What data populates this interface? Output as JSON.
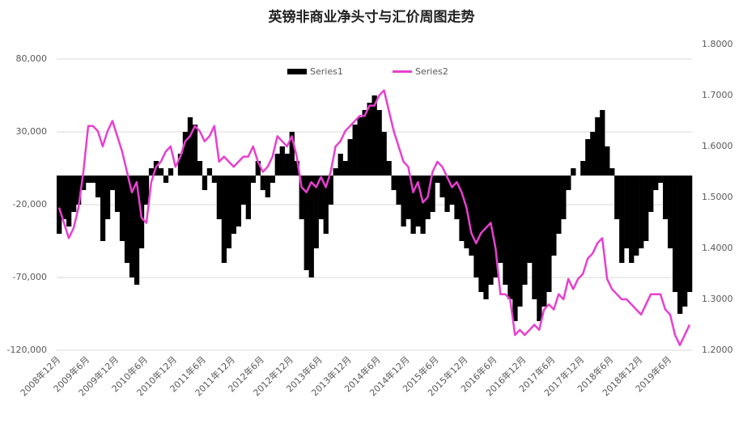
{
  "chart_data": {
    "type": "bar_line",
    "title": "英镑非商业净头寸与汇价周图走势",
    "categories": [
      "2008年12月",
      null,
      null,
      null,
      null,
      null,
      "2009年6月",
      null,
      null,
      null,
      null,
      null,
      "2009年12月",
      null,
      null,
      null,
      null,
      null,
      "2010年6月",
      null,
      null,
      null,
      null,
      null,
      "2010年12月",
      null,
      null,
      null,
      null,
      null,
      "2011年6月",
      null,
      null,
      null,
      null,
      null,
      "2011年12月",
      null,
      null,
      null,
      null,
      null,
      "2012年6月",
      null,
      null,
      null,
      null,
      null,
      "2012年12月",
      null,
      null,
      null,
      null,
      null,
      "2013年6月",
      null,
      null,
      null,
      null,
      null,
      "2013年12月",
      null,
      null,
      null,
      null,
      null,
      "2014年6月",
      null,
      null,
      null,
      null,
      null,
      "2014年12月",
      null,
      null,
      null,
      null,
      null,
      "2015年6月",
      null,
      null,
      null,
      null,
      null,
      "2015年12月",
      null,
      null,
      null,
      null,
      null,
      "2016年6月",
      null,
      null,
      null,
      null,
      null,
      "2016年12月",
      null,
      null,
      null,
      null,
      null,
      "2017年6月",
      null,
      null,
      null,
      null,
      null,
      "2017年12月",
      null,
      null,
      null,
      null,
      null,
      "2018年6月",
      null,
      null,
      null,
      null,
      null,
      "2018年12月",
      null,
      null,
      null,
      null,
      null,
      "2019年6月",
      null,
      null,
      null,
      null
    ],
    "series": [
      {
        "name": "Series1",
        "color": "#000000",
        "kind": "bar",
        "values": [
          -40000,
          -30000,
          -35000,
          -25000,
          -20000,
          -10000,
          -5000,
          -5000,
          -15000,
          -45000,
          -30000,
          -10000,
          -25000,
          -45000,
          -60000,
          -70000,
          -75000,
          -50000,
          -20000,
          5000,
          10000,
          5000,
          -5000,
          5000,
          0,
          15000,
          30000,
          40000,
          35000,
          10000,
          -10000,
          5000,
          -5000,
          -30000,
          -60000,
          -50000,
          -40000,
          -35000,
          -20000,
          -30000,
          -5000,
          10000,
          -10000,
          -15000,
          -5000,
          15000,
          20000,
          15000,
          30000,
          10000,
          -30000,
          -65000,
          -70000,
          -50000,
          -30000,
          -40000,
          -20000,
          5000,
          15000,
          10000,
          25000,
          35000,
          40000,
          45000,
          50000,
          55000,
          45000,
          30000,
          10000,
          -10000,
          -20000,
          -35000,
          -30000,
          -40000,
          -35000,
          -40000,
          -30000,
          -25000,
          -5000,
          -15000,
          -25000,
          -20000,
          -30000,
          -45000,
          -50000,
          -55000,
          -70000,
          -80000,
          -85000,
          -75000,
          -70000,
          -60000,
          -75000,
          -85000,
          -100000,
          -90000,
          -75000,
          -60000,
          -85000,
          -100000,
          -90000,
          -80000,
          -55000,
          -40000,
          -30000,
          -10000,
          5000,
          0,
          10000,
          25000,
          30000,
          40000,
          45000,
          20000,
          5000,
          -30000,
          -60000,
          -50000,
          -60000,
          -55000,
          -50000,
          -45000,
          -25000,
          -10000,
          -5000,
          -30000,
          -50000,
          -80000,
          -95000,
          -90000,
          -80000
        ]
      },
      {
        "name": "Series2",
        "color": "#e83fd0",
        "kind": "line",
        "axis": "y2",
        "values": [
          1.48,
          1.45,
          1.42,
          1.44,
          1.48,
          1.55,
          1.64,
          1.64,
          1.63,
          1.6,
          1.63,
          1.65,
          1.62,
          1.59,
          1.55,
          1.51,
          1.53,
          1.46,
          1.45,
          1.53,
          1.56,
          1.57,
          1.59,
          1.6,
          1.56,
          1.58,
          1.61,
          1.62,
          1.64,
          1.63,
          1.61,
          1.62,
          1.64,
          1.57,
          1.58,
          1.57,
          1.56,
          1.57,
          1.58,
          1.58,
          1.6,
          1.57,
          1.55,
          1.56,
          1.58,
          1.62,
          1.61,
          1.6,
          1.62,
          1.58,
          1.52,
          1.51,
          1.53,
          1.52,
          1.54,
          1.52,
          1.55,
          1.6,
          1.61,
          1.63,
          1.64,
          1.65,
          1.66,
          1.66,
          1.68,
          1.68,
          1.7,
          1.71,
          1.67,
          1.63,
          1.6,
          1.57,
          1.56,
          1.51,
          1.53,
          1.49,
          1.5,
          1.55,
          1.57,
          1.56,
          1.54,
          1.52,
          1.53,
          1.51,
          1.48,
          1.43,
          1.41,
          1.43,
          1.44,
          1.45,
          1.4,
          1.31,
          1.31,
          1.3,
          1.23,
          1.24,
          1.23,
          1.24,
          1.25,
          1.24,
          1.28,
          1.29,
          1.28,
          1.31,
          1.3,
          1.34,
          1.32,
          1.34,
          1.35,
          1.38,
          1.39,
          1.41,
          1.42,
          1.34,
          1.32,
          1.31,
          1.3,
          1.3,
          1.29,
          1.28,
          1.27,
          1.29,
          1.31,
          1.31,
          1.31,
          1.28,
          1.27,
          1.23,
          1.21,
          1.23,
          1.25
        ]
      }
    ],
    "ylim": [
      -120000,
      90000
    ],
    "yticks": [
      {
        "value": -120000,
        "label": "-120,000"
      },
      {
        "value": -70000,
        "label": "-70,000"
      },
      {
        "value": -20000,
        "label": "-20,000"
      },
      {
        "value": 30000,
        "label": "30,000"
      },
      {
        "value": 80000,
        "label": "80,000"
      }
    ],
    "y2lim": [
      1.2,
      1.8
    ],
    "y2ticks": [
      {
        "value": 1.2,
        "label": "1.2000"
      },
      {
        "value": 1.3,
        "label": "1.3000"
      },
      {
        "value": 1.4,
        "label": "1.4000"
      },
      {
        "value": 1.5,
        "label": "1.5000"
      },
      {
        "value": 1.6,
        "label": "1.6000"
      },
      {
        "value": 1.7,
        "label": "1.7000"
      },
      {
        "value": 1.8,
        "label": "1.8000"
      }
    ],
    "grid": true,
    "legend": "top"
  }
}
